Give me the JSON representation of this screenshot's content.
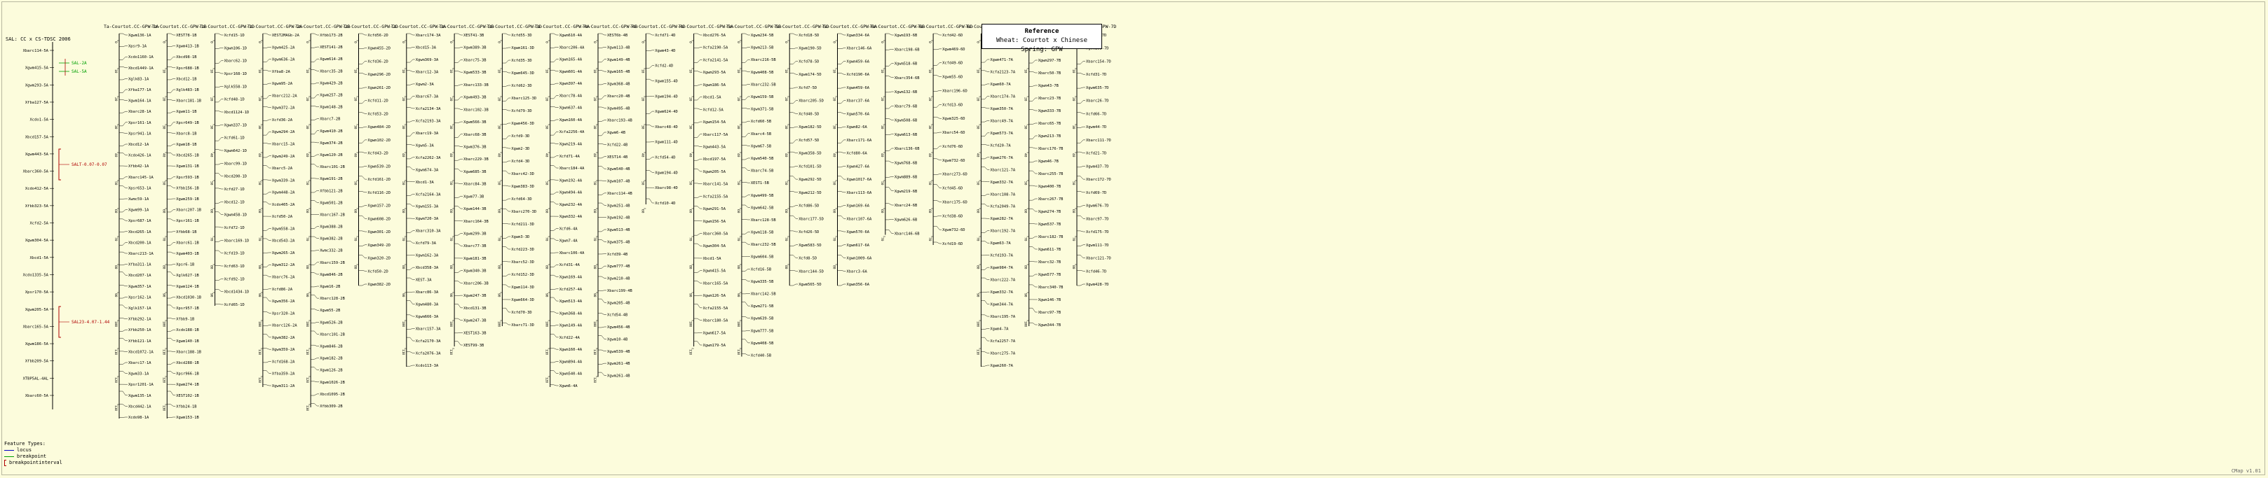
{
  "reference": {
    "title": "Reference",
    "subtitle": "Wheat: Courtot x Chinese Spring: GPW"
  },
  "legend": {
    "title": "Feature Types:",
    "items": [
      {
        "label": "locus",
        "color": "#0000c8",
        "kind": "line"
      },
      {
        "label": "breakpoint",
        "color": "#00a000",
        "kind": "line"
      },
      {
        "label": "breakpointinterval",
        "color": "#b00000",
        "kind": "bracket"
      }
    ]
  },
  "version": "CMap v1.01",
  "colors": {
    "background": "#fcfcdc",
    "line": "#000000",
    "qtl": "#b00000",
    "green": "#00a000"
  },
  "qtl_map": {
    "title": "SAL: CC x CS-TDSC 2006",
    "markers": [
      "Xbarc114-5A",
      "Xgwm415-5A",
      "Xgwm293-5A",
      "Xfba127-5A",
      "Xcdo1-5A",
      "Xbcd157-5A",
      "Xgwm443-5A",
      "Xbarc360-5A",
      "Xcdo412-5A",
      "Xfbb323-5A",
      "Xcfd2-5A",
      "Xgwm304-5A",
      "Xbcd1-5A",
      "Xcdo1335-5A",
      "Xpsr170-5A",
      "Xgwm205-5A",
      "Xbarc165-5A",
      "Xgwm186-5A",
      "Xfbb209-5A",
      "XTBP5AL-4AL",
      "Xbarc60-5A"
    ],
    "qtls": [
      {
        "label": "SAL-2A",
        "color": "#00a000"
      },
      {
        "label": "SAL-5A",
        "color": "#00a000"
      },
      {
        "label": "SALT-0.07-0.07",
        "color": "#b00000"
      },
      {
        "label": "SAL23-4.07-1.44",
        "color": "#b00000"
      }
    ]
  },
  "chromosomes": [
    {
      "title": "Ta-Courtot.CC-GPW-1A",
      "markers": [
        "Xgwm136-1A",
        "Xpsr9-1A",
        "Xcdo1160-1A",
        "Xbcd1449-1A",
        "Xglk83-1A",
        "Xfba177-1A",
        "Xgwm164-1A",
        "Xbarc28-1A",
        "Xpsr161-1A",
        "Xpsr941-1A",
        "Xbcd12-1A",
        "Xcdo426-1A",
        "Xfbb42-1A",
        "Xbarc145-1A",
        "Xpsr653-1A",
        "Xwmc59-1A",
        "Xgwm99-1A",
        "Xpsr687-1A",
        "Xbcd265-1A",
        "Xbcd200-1A",
        "Xbarc213-1A",
        "Xfba311-1A",
        "Xbcd207-1A",
        "Xgwm357-1A",
        "Xpsr162-1A",
        "Xglk157-1A",
        "Xfbb292-1A",
        "Xfbb250-1A",
        "Xfbb121-1A",
        "Xbcd1072-1A",
        "Xbarc17-1A",
        "Xgwm33-1A",
        "Xpsr1201-1A",
        "Xgwm135-1A",
        "Xbcd442-1A",
        "Xcdo98-1A"
      ]
    },
    {
      "title": "Ta-Courtot.CC-GPW-1B",
      "markers": [
        "XEST78-1B",
        "Xgwm413-1B",
        "Xbcd98-1B",
        "Xpsr688-1B",
        "Xbcd12-1B",
        "Xglk483-1B",
        "Xbarc181-1B",
        "Xgwm11-1B",
        "Xpsr649-1B",
        "Xbarc8-1B",
        "Xgwm18-1B",
        "Xbcd265-1B",
        "Xgwm131-1B",
        "Xpsr593-1B",
        "Xfbb156-1B",
        "Xgwm259-1B",
        "Xbarc207-1B",
        "Xpsr161-1B",
        "Xfbb68-1B",
        "Xbarc61-1B",
        "Xgwm403-1B",
        "Xpsr6-1B",
        "Xglk627-1B",
        "Xgwm124-1B",
        "Xbcd1030-1B",
        "Xpsr957-1B",
        "Xfbb9-1B",
        "Xcdo188-1B",
        "Xgwm140-1B",
        "Xbarc188-1B",
        "Xbcd288-1B",
        "Xpsr966-1B",
        "Xgwm274-1B",
        "XEST102-1B",
        "Xfbb24-1B",
        "Xgwm153-1B"
      ]
    },
    {
      "title": "Ta-Courtot.CC-GPW-1D",
      "markers": [
        "Xcfd15-1D",
        "Xgwm106-1D",
        "Xbarc62-1D",
        "Xpsr168-1D",
        "Xglk558-1D",
        "Xcfd48-1D",
        "Xbcd1124-1D",
        "Xgwm337-1D",
        "Xcfd61-1D",
        "Xgwm642-1D",
        "Xbarc99-1D",
        "Xbcd200-1D",
        "Xcfd27-1D",
        "Xbcd12-1D",
        "Xgwm458-1D",
        "Xcfd72-1D",
        "Xbarc169-1D",
        "Xcfd19-1D",
        "Xcfd63-1D",
        "Xcfd92-1D",
        "Xbcd1434-1D",
        "Xcfd65-1D"
      ]
    },
    {
      "title": "Ta-Courtot.CC-GPW-2A",
      "markers": [
        "XEST2MAGb-2A",
        "Xgwm425-2A",
        "Xgwm636-2A",
        "Xfba8-2A",
        "Xgwm95-2A",
        "Xbarc212-2A",
        "Xgwm372-2A",
        "Xcfd36-2A",
        "Xgwm294-2A",
        "Xbarc15-2A",
        "Xgwm249-2A",
        "Xbarc5-2A",
        "Xgwm339-2A",
        "Xgwm448-2A",
        "Xcdo405-2A",
        "Xcfd50-2A",
        "Xgwm558-2A",
        "Xbcd543-2A",
        "Xgwm265-2A",
        "Xgwm312-2A",
        "Xbarc76-2A",
        "Xcfd86-2A",
        "Xgwm356-2A",
        "Xpsr320-2A",
        "Xbarc126-2A",
        "Xgwm382-2A",
        "Xgwm359-2A",
        "Xcfd168-2A",
        "Xfba359-2A",
        "Xgwm311-2A"
      ]
    },
    {
      "title": "Ta-Courtot.CC-GPW-2B",
      "markers": [
        "Xfbb173-2B",
        "XEST141-2B",
        "Xgwm614-2B",
        "Xbarc35-2B",
        "Xgwm429-2B",
        "Xgwm257-2B",
        "Xgwm148-2B",
        "Xbarc7-2B",
        "Xgwm410-2B",
        "Xgwm374-2B",
        "Xgwm120-2B",
        "Xbarc101-2B",
        "Xgwm191-2B",
        "Xfbb121-2B",
        "Xgwm501-2B",
        "Xbarc167-2B",
        "Xgwm388-2B",
        "Xgwm382-2B",
        "Xwmc332-2B",
        "Xbarc159-2B",
        "Xgwm846-2B",
        "Xgwm16-2B",
        "Xbarc128-2B",
        "Xgwm55-2B",
        "Xgwm526-2B",
        "Xbarc101-2B",
        "Xgwm846-2B",
        "Xgwm182-2B",
        "Xgwm126-2B",
        "Xgwm1026-2B",
        "Xbcd1095-2B",
        "Xfbb309-2B"
      ]
    },
    {
      "title": "Ta-Courtot.CC-GPW-2D",
      "markers": [
        "Xcfd56-2D",
        "Xgwm455-2D",
        "Xcfd36-2D",
        "Xgwm296-2D",
        "Xgwm261-2D",
        "Xcfd11-2D",
        "Xcfd53-2D",
        "Xgwm484-2D",
        "Xgwm102-2D",
        "Xcfd43-2D",
        "Xgwm539-2D",
        "Xcfd161-2D",
        "Xcfd116-2D",
        "Xgwm157-2D",
        "Xgwm608-2D",
        "Xgwm301-2D",
        "Xgwm349-2D",
        "Xgwm320-2D",
        "Xcfd50-2D",
        "Xgwm382-2D"
      ]
    },
    {
      "title": "Ta-Courtot.CC-GPW-3A",
      "markers": [
        "Xbarc174-3A",
        "Xbcd15-3A",
        "Xgwm369-3A",
        "Xbarc12-3A",
        "Xgwm2-3A",
        "Xbarc67-3A",
        "Xcfa2134-3A",
        "Xcfa2193-3A",
        "Xbarc19-3A",
        "Xgwm5-3A",
        "Xcfa2262-3A",
        "Xgwm674-3A",
        "Xbcd1-3A",
        "Xcfa2164-3A",
        "Xgwm155-3A",
        "Xgwm720-3A",
        "Xbarc310-3A",
        "Xcfd79-3A",
        "Xgwm162-3A",
        "Xbcd358-3A",
        "XEST-3A",
        "Xbarc86-3A",
        "Xgwm480-3A",
        "Xgwm666-3A",
        "Xbarc157-3A",
        "Xcfa2170-3A",
        "Xcfa2076-3A",
        "Xcdo113-3A"
      ]
    },
    {
      "title": "Ta-Courtot.CC-GPW-3B",
      "markers": [
        "XEST41-3B",
        "Xgwm389-3B",
        "Xbarc75-3B",
        "Xgwm533-3B",
        "Xbarc133-3B",
        "Xgwm493-3B",
        "Xbarc102-3B",
        "Xgwm566-3B",
        "Xbarc68-3B",
        "Xgwm376-3B",
        "Xbarc229-3B",
        "Xgwm685-3B",
        "Xbarc84-3B",
        "Xgwm77-3B",
        "Xgwm144-3B",
        "Xbarc164-3B",
        "Xgwm299-3B",
        "Xbarc77-3B",
        "Xgwm181-3B",
        "Xgwm340-3B",
        "Xbarc206-3B",
        "Xgwm247-3B",
        "Xbcd131-3B",
        "Xgwm247-3B",
        "XEST163-3B",
        "XEST99-3B"
      ]
    },
    {
      "title": "Ta-Courtot.CC-GPW-3D",
      "markers": [
        "Xcfd55-3D",
        "Xgwm161-3D",
        "Xcfd35-3D",
        "Xgwm645-3D",
        "Xcfd62-3D",
        "Xbarc125-3D",
        "Xcfd79-3D",
        "Xgwm456-3D",
        "Xcfd9-3D",
        "Xgwm2-3D",
        "Xcfd4-3D",
        "Xbarc42-3D",
        "Xgwm383-3D",
        "Xcfd64-3D",
        "Xbarc270-3D",
        "Xcfd211-3D",
        "Xgwm3-3D",
        "Xcfd223-3D",
        "Xbarc52-3D",
        "Xcfd152-3D",
        "Xgwm114-3D",
        "Xgwm664-3D",
        "Xcfd70-3D",
        "Xbarc71-3D"
      ]
    },
    {
      "title": "Ta-Courtot.CC-GPW-4A",
      "markers": [
        "Xgwm610-4A",
        "Xbarc206-4A",
        "Xgwm165-4A",
        "Xgwm601-4A",
        "Xgwm397-4A",
        "Xbarc78-4A",
        "Xgwm637-4A",
        "Xgwm160-4A",
        "Xcfa2256-4A",
        "Xgwm219-4A",
        "Xcfd71-4A",
        "Xbarc184-4A",
        "Xgwm192-4A",
        "Xgwm494-4A",
        "Xgwm232-4A",
        "Xgwm332-4A",
        "Xcfd6-4A",
        "Xgwm7-4A",
        "Xbarc106-4A",
        "Xcfd31-4A",
        "Xgwm169-4A",
        "Xcfd257-4A",
        "Xgwm513-4A",
        "Xgwm368-4A",
        "Xgwm149-4A",
        "Xcfd22-4A",
        "Xgwm160-4A",
        "Xgwm894-4A",
        "Xgwm540-4A",
        "Xgwm6-4A"
      ]
    },
    {
      "title": "Ta-Courtot.CC-GPW-4B",
      "markers": [
        "XEST6b-4B",
        "Xgwm113-4B",
        "Xgwm149-4B",
        "Xgwm165-4B",
        "Xgwm368-4B",
        "Xbarc20-4B",
        "Xgwm495-4B",
        "Xbarc193-4B",
        "Xgwm6-4B",
        "Xcfd22-4B",
        "XEST14-4B",
        "Xgwm540-4B",
        "Xgwm107-4B",
        "Xbarc114-4B",
        "Xgwm251-4B",
        "Xgwm192-4B",
        "Xgwm513-4B",
        "Xgwm375-4B",
        "Xcfd39-4B",
        "Xgwm777-4B",
        "Xgwm210-4B",
        "Xbarc199-4B",
        "Xgwm205-4B",
        "Xcfd54-4B",
        "Xgwm456-4B",
        "Xgwm10-4B",
        "Xgwm539-4B",
        "Xgwm261-4B",
        "Xgwm261-4B"
      ]
    },
    {
      "title": "Ta-Courtot.CC-GPW-4D",
      "markers": [
        "Xcfd71-4D",
        "Xgwm43-4D",
        "Xcfd2-4D",
        "Xgwm155-4D",
        "Xgwm194-4D",
        "Xgwm624-4D",
        "Xbarc48-4D",
        "Xgwm111-4D",
        "Xcfd54-4D",
        "Xgwm194-4D",
        "Xbarc98-4D",
        "Xcfd10-4D"
      ]
    },
    {
      "title": "Ta-Courtot.CC-GPW-5A",
      "markers": [
        "Xbcd276-5A",
        "Xcfa2190-5A",
        "Xcfa2141-5A",
        "Xgwm293-5A",
        "Xgwm186-5A",
        "Xbcd1-5A",
        "Xcfd12-5A",
        "Xgwm154-5A",
        "Xbarc117-5A",
        "Xgwm443-5A",
        "Xbcd197-5A",
        "Xgwm205-5A",
        "Xbarc141-5A",
        "Xcfa2155-5A",
        "Xgwm291-5A",
        "Xgwm156-5A",
        "Xbarc360-5A",
        "Xgwm304-5A",
        "Xbcd1-5A",
        "Xgwm415-5A",
        "Xbarc165-5A",
        "Xgwm126-5A",
        "Xcfa2155-5A",
        "Xbarc180-5A",
        "Xgwm617-5A",
        "Xgwm179-5A"
      ]
    },
    {
      "title": "Ta-Courtot.CC-GPW-5B",
      "markers": [
        "Xgwm234-5B",
        "Xgwm213-5B",
        "Xbarc216-5B",
        "Xgwm408-5B",
        "Xbarc232-5B",
        "Xgwm159-5B",
        "Xgwm371-5B",
        "Xcfd60-5B",
        "Xbarc4-5B",
        "Xgwm67-5B",
        "Xgwm540-5B",
        "Xbarc74-5B",
        "XEST1-5B",
        "Xgwm499-5B",
        "Xgwm642-5B",
        "Xbarc128-5B",
        "Xgwm118-5B",
        "Xbarc232-5B",
        "Xgwm604-5B",
        "Xcfd16-5B",
        "Xgwm335-5B",
        "Xbarc142-5B",
        "Xgwm271-5B",
        "Xgwm639-5B",
        "Xgwm777-5B",
        "Xgwm408-5B",
        "Xcfd40-5B"
      ]
    },
    {
      "title": "Ta-Courtot.CC-GPW-5D",
      "markers": [
        "Xcfd18-5D",
        "Xgwm190-5D",
        "Xcfd78-5D",
        "Xgwm174-5D",
        "Xcfd7-5D",
        "Xbarc205-5D",
        "Xcfd40-5D",
        "Xgwm182-5D",
        "Xcfd57-5D",
        "Xgwm358-5D",
        "Xcfd101-5D",
        "Xgwm292-5D",
        "Xgwm212-5D",
        "Xcfd86-5D",
        "Xbarc177-5D",
        "Xcfd26-5D",
        "Xgwm583-5D",
        "Xcfd8-5D",
        "Xbarc144-5D",
        "Xgwm565-5D"
      ]
    },
    {
      "title": "Ta-Courtot.CC-GPW-6A",
      "markers": [
        "Xgwm334-6A",
        "Xbarc146-6A",
        "Xgwm459-6A",
        "Xcfd190-6A",
        "Xgwm459-6A",
        "Xbarc37-6A",
        "Xgwm570-6A",
        "Xgwm82-6A",
        "Xbarc171-6A",
        "Xcfd80-6A",
        "Xgwm427-6A",
        "Xgwm1017-6A",
        "Xbarc113-6A",
        "Xgwm169-6A",
        "Xbarc107-6A",
        "Xgwm570-6A",
        "Xgwm617-6A",
        "Xgwm1009-6A",
        "Xbarc3-6A",
        "Xgwm356-6A"
      ]
    },
    {
      "title": "Ta-Courtot.CC-GPW-6B",
      "markers": [
        "Xgwm193-6B",
        "Xbarc198-6B",
        "Xgwm518-6B",
        "Xbarc354-6B",
        "Xgwm132-6B",
        "Xbarc79-6B",
        "Xgwm508-6B",
        "Xgwm613-6B",
        "Xbarc136-6B",
        "Xgwm768-6B",
        "Xgwm889-6B",
        "Xgwm219-6B",
        "Xbarc24-6B",
        "Xgwm626-6B",
        "Xbarc146-6B"
      ]
    },
    {
      "title": "Ta-Courtot.CC-GPW-6D",
      "markers": [
        "Xcfd42-6D",
        "Xgwm469-6D",
        "Xcfd49-6D",
        "Xgwm55-6D",
        "Xbarc196-6D",
        "Xcfd13-6D",
        "Xgwm325-6D",
        "Xbarc54-6D",
        "Xcfd76-6D",
        "Xgwm732-6D",
        "Xbarc273-6D",
        "Xcfd45-6D",
        "Xbarc175-6D",
        "Xcfd38-6D",
        "Xgwm732-6D",
        "Xcfd19-6D"
      ]
    },
    {
      "title": "Ta-Courtot.CC-GPW-7A",
      "markers": [
        "Xgwm233-7A",
        "Xbarc70-7A",
        "Xgwm471-7A",
        "Xcfa2123-7A",
        "Xgwm60-7A",
        "Xbarc174-7A",
        "Xgwm350-7A",
        "Xbarc49-7A",
        "Xgwm573-7A",
        "Xcfd20-7A",
        "Xgwm276-7A",
        "Xbarc121-7A",
        "Xgwm332-7A",
        "Xbarc108-7A",
        "Xcfa2049-7A",
        "Xgwm282-7A",
        "Xbarc192-7A",
        "Xgwm63-7A",
        "Xcfd193-7A",
        "Xgwm984-7A",
        "Xbarc222-7A",
        "Xgwm332-7A",
        "Xgwm344-7A",
        "Xbarc195-7A",
        "Xgwm4-7A",
        "Xcfa2257-7A",
        "Xbarc275-7A",
        "Xgwm260-7A"
      ]
    },
    {
      "title": "Ta-Courtot.CC-GPW-7B",
      "markers": [
        "Xgwm569-7B",
        "Xbarc72-7B",
        "Xgwm297-7B",
        "Xbarc50-7B",
        "Xgwm43-7B",
        "Xbarc23-7B",
        "Xgwm333-7B",
        "Xbarc65-7B",
        "Xgwm213-7B",
        "Xbarc176-7B",
        "Xgwm46-7B",
        "Xbarc255-7B",
        "Xgwm400-7B",
        "Xbarc267-7B",
        "Xgwm274-7B",
        "Xgwm537-7B",
        "Xbarc182-7B",
        "Xgwm611-7B",
        "Xbarc32-7B",
        "Xgwm577-7B",
        "Xbarc340-7B",
        "Xgwm146-7B",
        "Xbarc97-7B",
        "Xgwm344-7B"
      ]
    },
    {
      "title": "Ta-Courtot.CC-GPW-7D",
      "markers": [
        "Xcfd14-7D",
        "Xgwm295-7D",
        "Xbarc154-7D",
        "Xcfd31-7D",
        "Xgwm635-7D",
        "Xbarc26-7D",
        "Xcfd66-7D",
        "Xgwm44-7D",
        "Xbarc111-7D",
        "Xcfd21-7D",
        "Xgwm437-7D",
        "Xbarc172-7D",
        "Xcfd69-7D",
        "Xgwm676-7D",
        "Xbarc97-7D",
        "Xcfd175-7D",
        "Xgwm111-7D",
        "Xbarc121-7D",
        "Xcfd46-7D",
        "Xgwm428-7D"
      ]
    }
  ]
}
